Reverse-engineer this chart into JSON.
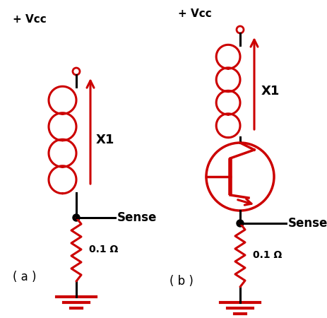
{
  "fig_width": 4.64,
  "fig_height": 4.5,
  "dpi": 100,
  "bg_color": "#ffffff",
  "red": "#cc0000",
  "black": "#000000",
  "label_a": "( a )",
  "label_b": "( b )",
  "vcc_label": "+ Vcc",
  "x1_label": "X1",
  "sense_label": "Sense",
  "resistor_label": "0.1 Ω"
}
